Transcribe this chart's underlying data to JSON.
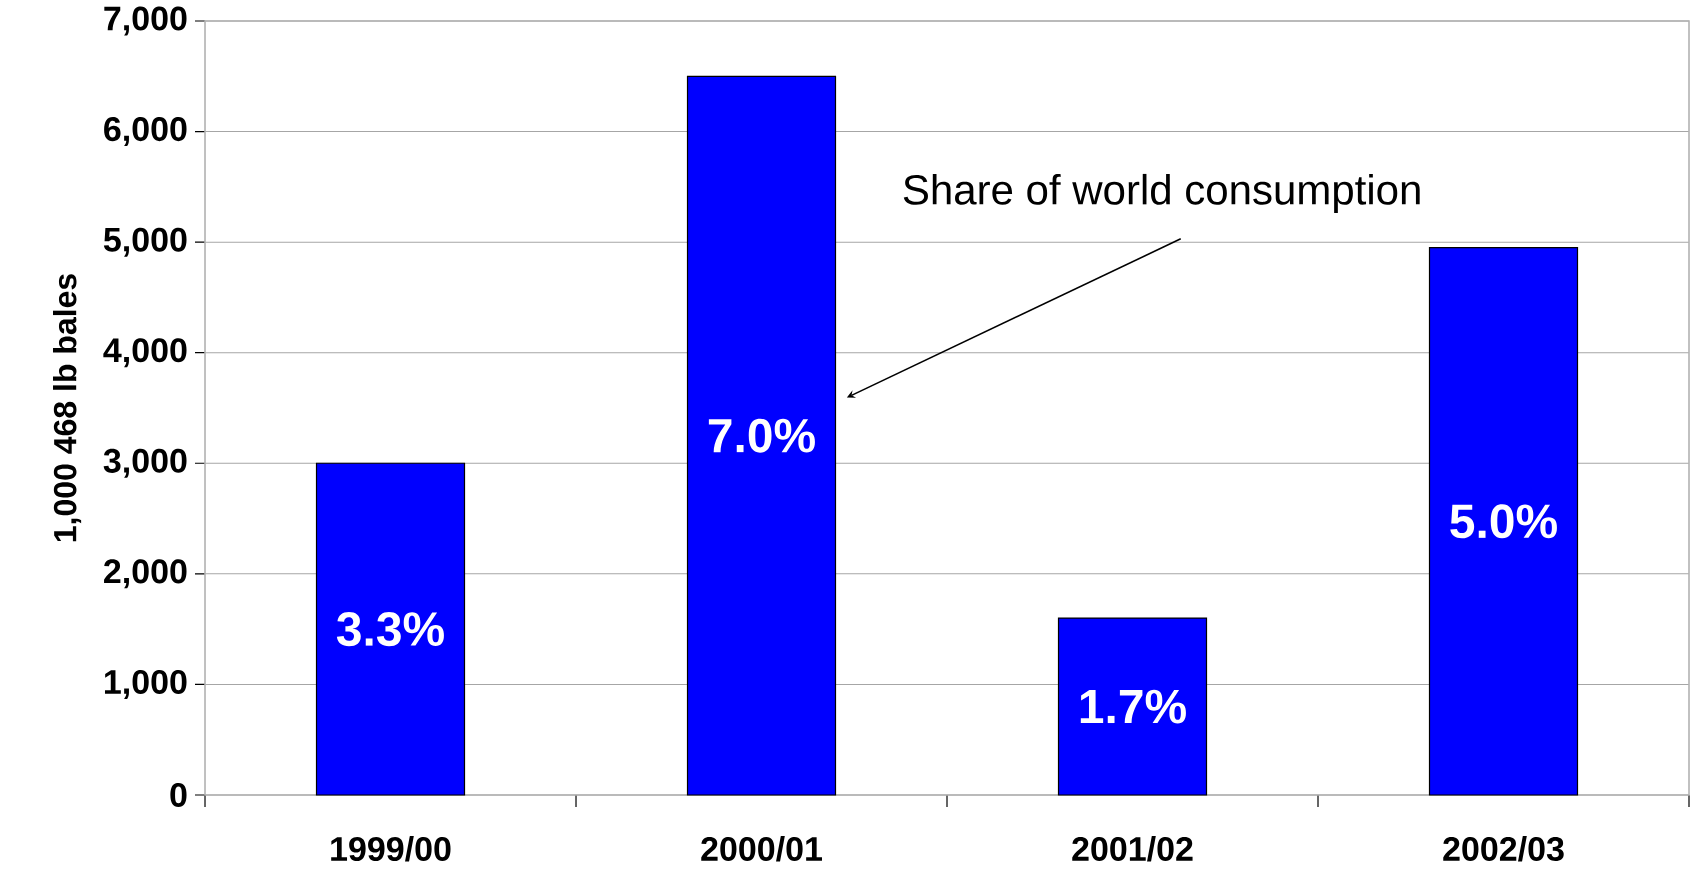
{
  "chart_data": {
    "type": "bar",
    "ylabel": "1,000 468 lb bales",
    "categories": [
      "1999/00",
      "2000/01",
      "2001/02",
      "2002/03"
    ],
    "values": [
      3000,
      6500,
      1600,
      4950
    ],
    "color": "#0000ff",
    "ylim": [
      0,
      7000
    ],
    "yticks": [
      {
        "value": 0,
        "label": "0"
      },
      {
        "value": 1000,
        "label": "1,000"
      },
      {
        "value": 2000,
        "label": "2,000"
      },
      {
        "value": 3000,
        "label": "3,000"
      },
      {
        "value": 4000,
        "label": "4,000"
      },
      {
        "value": 5000,
        "label": "5,000"
      },
      {
        "value": 6000,
        "label": "6,000"
      },
      {
        "value": 7000,
        "label": "7,000"
      }
    ],
    "grid": "y",
    "annotations": [
      "Share of world consumption",
      "3.3%",
      "7.0%",
      "1.7%",
      "5.0%"
    ]
  }
}
